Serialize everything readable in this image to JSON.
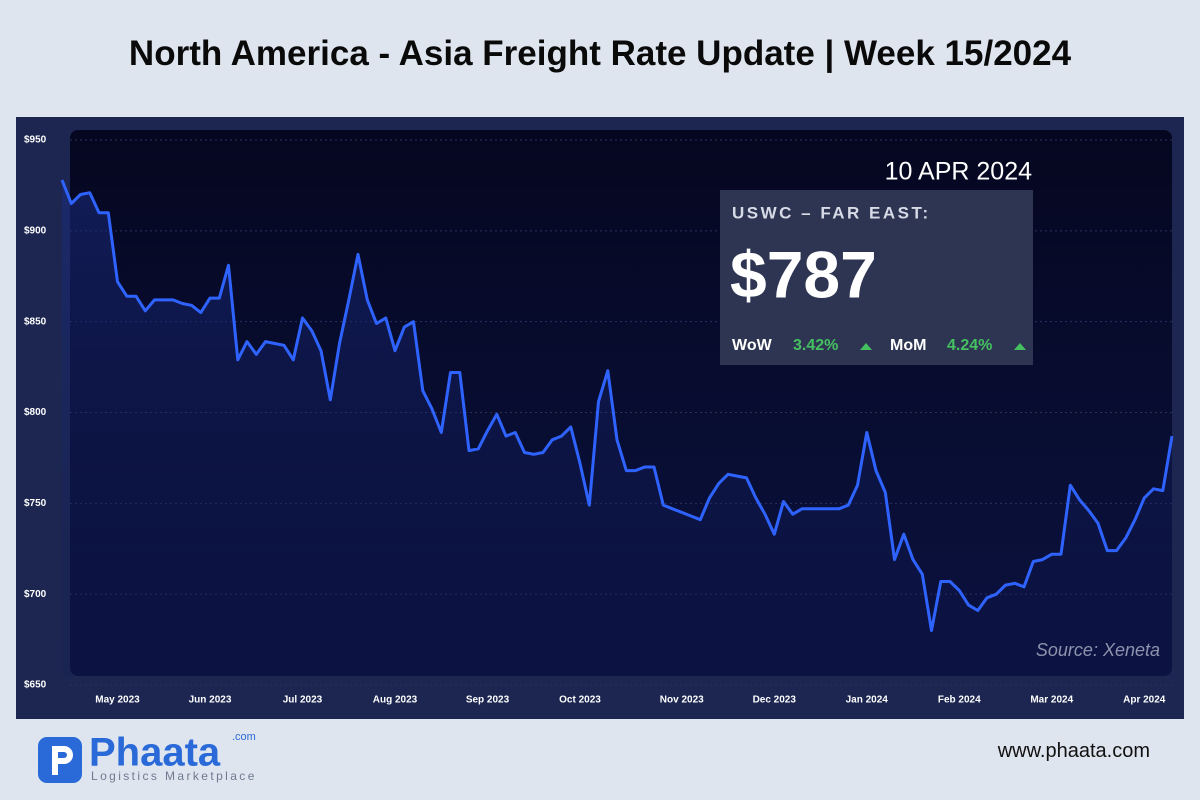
{
  "chart_data": {
    "type": "line",
    "title": "North America - Asia Freight Rate Update | Week 15/2024",
    "categories": [
      null,
      null,
      null,
      null,
      null,
      null,
      "May 2023",
      null,
      null,
      null,
      null,
      null,
      null,
      null,
      null,
      null,
      "Jun 2023",
      null,
      null,
      null,
      null,
      null,
      null,
      null,
      null,
      null,
      "Jul 2023",
      null,
      null,
      null,
      null,
      null,
      null,
      null,
      null,
      null,
      "Aug 2023",
      null,
      null,
      null,
      null,
      null,
      null,
      null,
      null,
      null,
      "Sep 2023",
      null,
      null,
      null,
      null,
      null,
      null,
      null,
      null,
      null,
      "Oct 2023",
      null,
      null,
      null,
      null,
      null,
      null,
      null,
      null,
      null,
      null,
      "Nov 2023",
      null,
      null,
      null,
      null,
      null,
      null,
      null,
      null,
      null,
      "Dec 2023",
      null,
      null,
      null,
      null,
      null,
      null,
      null,
      null,
      null,
      "Jan 2024",
      null,
      null,
      null,
      null,
      null,
      null,
      null,
      null,
      null,
      "Feb 2024",
      null,
      null,
      null,
      null,
      null,
      null,
      null,
      null,
      null,
      "Mar 2024",
      null,
      null,
      null,
      null,
      null,
      null,
      null,
      null,
      null,
      "Apr 2024",
      null,
      null,
      null
    ],
    "values": [
      928,
      915,
      920,
      921,
      910,
      910,
      872,
      864,
      864,
      856,
      862,
      862,
      862,
      860,
      859,
      855,
      863,
      863,
      881,
      829,
      839,
      832,
      839,
      838,
      837,
      829,
      852,
      845,
      834,
      807,
      838,
      862,
      887,
      862,
      849,
      852,
      834,
      847,
      850,
      812,
      802,
      789,
      822,
      822,
      779,
      780,
      790,
      799,
      787,
      789,
      778,
      777,
      778,
      785,
      787,
      792,
      772,
      749,
      806,
      823,
      785,
      768,
      768,
      770,
      770,
      749,
      747,
      745,
      743,
      741,
      753,
      761,
      766,
      765,
      764,
      753,
      744,
      733,
      751,
      744,
      747,
      747,
      747,
      747,
      747,
      749,
      760,
      789,
      768,
      756,
      719,
      733,
      719,
      711,
      680,
      707,
      707,
      702,
      694,
      691,
      698,
      700,
      705,
      706,
      704,
      718,
      719,
      722,
      722,
      760,
      752,
      746,
      739,
      724,
      724,
      731,
      741,
      753,
      758,
      757,
      787
    ],
    "color": "#2f63ff",
    "ylim": [
      650,
      950
    ],
    "yticks": [
      {
        "value": 650,
        "label": "$650"
      },
      {
        "value": 700,
        "label": "$700"
      },
      {
        "value": 750,
        "label": "$750"
      },
      {
        "value": 800,
        "label": "$800"
      },
      {
        "value": 850,
        "label": "$850"
      },
      {
        "value": 900,
        "label": "$900"
      },
      {
        "value": 950,
        "label": "$950"
      }
    ],
    "grid": true,
    "annotations": {
      "date": "10 APR 2024",
      "route": "USWC – FAR EAST:",
      "price": "$787",
      "wow_label": "WoW",
      "wow": "3.42%",
      "mom_label": "MoM",
      "mom": "4.24%",
      "source": "Source: Xeneta"
    }
  },
  "footer": {
    "brand": "Phaata",
    "brand_suffix": ".com",
    "tagline": "Logistics Marketplace",
    "website": "www.phaata.com"
  }
}
